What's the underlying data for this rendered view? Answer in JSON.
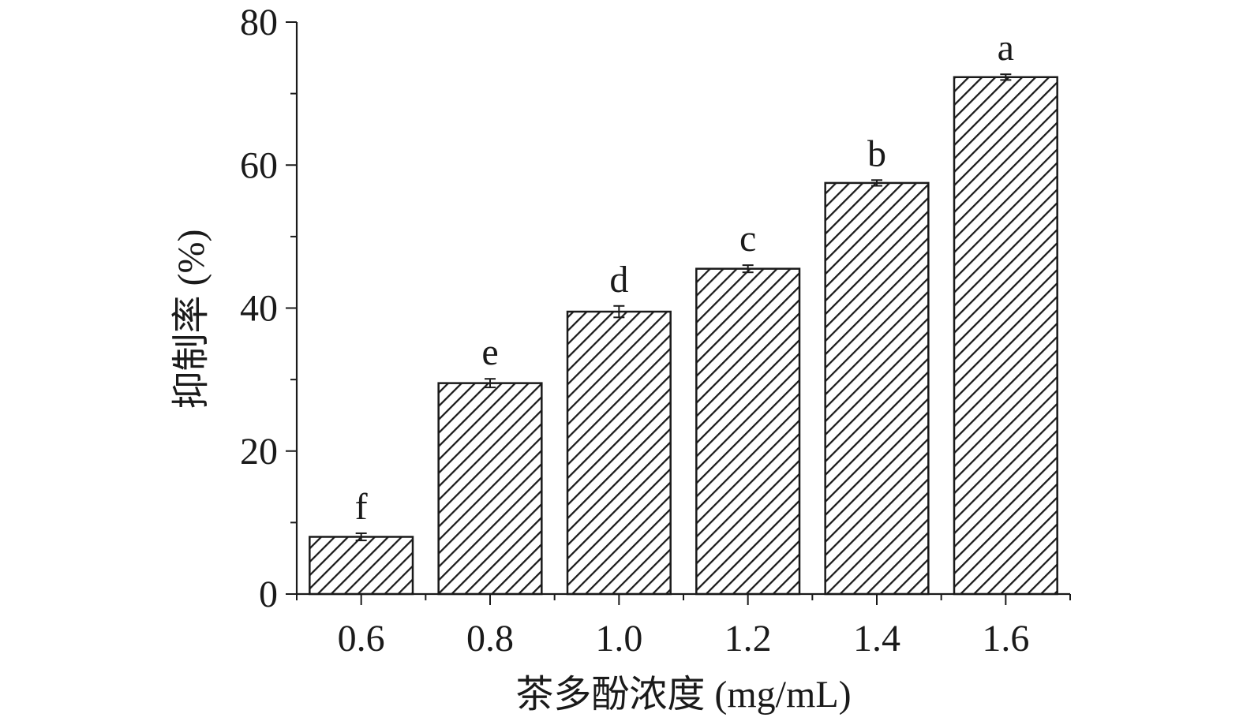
{
  "chart_data": {
    "type": "bar",
    "categories": [
      "0.6",
      "0.8",
      "1.0",
      "1.2",
      "1.4",
      "1.6"
    ],
    "values": [
      8.0,
      29.5,
      39.5,
      45.5,
      57.5,
      72.3
    ],
    "errors": [
      0.5,
      0.6,
      0.8,
      0.5,
      0.4,
      0.4
    ],
    "significance_labels": [
      "f",
      "e",
      "d",
      "c",
      "b",
      "a"
    ],
    "xlabel": "茶多酚浓度 (mg/mL)",
    "ylabel": "抑制率 (%)",
    "ylim": [
      0,
      80
    ],
    "yticks": [
      "0",
      "20",
      "40",
      "60",
      "80"
    ],
    "fill": "diagonal-hatch",
    "grid": false,
    "legend": "none"
  },
  "colors": {
    "ink": "#1a1a1a",
    "background": "#ffffff"
  }
}
